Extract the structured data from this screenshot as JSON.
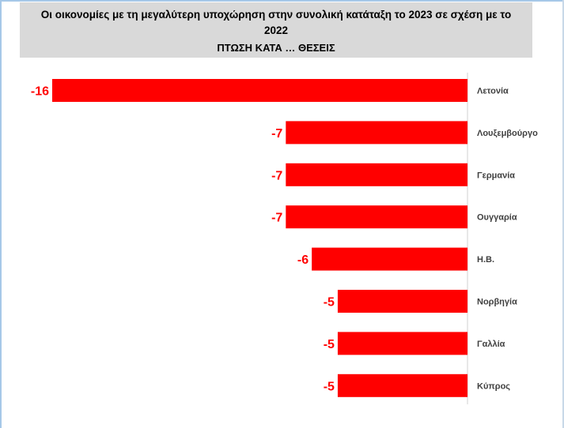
{
  "title_line1": "Οι οικονομίες με τη μεγαλύτερη υποχώρηση στην συνολική κατάταξη το 2023 σε σχέση με το",
  "title_line2": "2022",
  "subtitle": "ΠΤΩΣΗ ΚΑΤΑ … ΘΕΣΕΙΣ",
  "colors": {
    "bar": "#ff0000",
    "value_label": "#ff0000",
    "header_bg": "#d9d9d9"
  },
  "chart_data": {
    "type": "bar",
    "orientation": "horizontal",
    "categories": [
      "Λετονία",
      "Λουξεμβούργο",
      "Γερμανία",
      "Ουγγαρία",
      "Η.Β.",
      "Νορβηγία",
      "Γαλλία",
      "Κύπρος"
    ],
    "values": [
      -16,
      -7,
      -7,
      -7,
      -6,
      -5,
      -5,
      -5
    ],
    "data_labels": [
      "-16",
      "-7",
      "-7",
      "-7",
      "-6",
      "-5",
      "-5",
      "-5"
    ],
    "xlim": [
      -16,
      0
    ],
    "grid": false,
    "legend": "none"
  }
}
